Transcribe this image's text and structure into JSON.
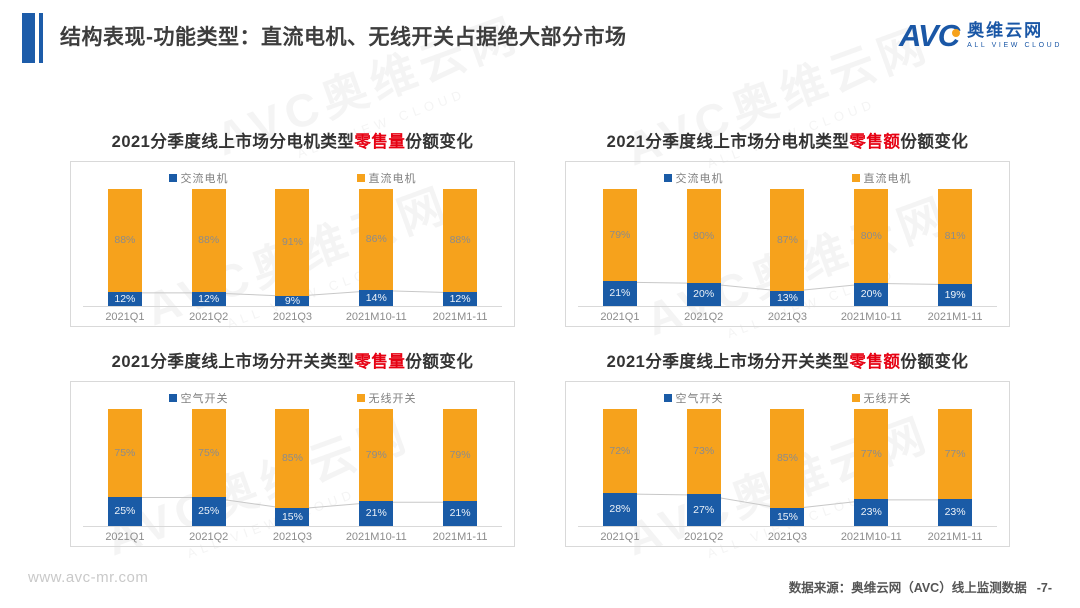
{
  "header": {
    "title": "结构表现-功能类型：直流电机、无线开关占据绝大部分市场"
  },
  "logo": {
    "name": "AVC",
    "cn": "奥维云网",
    "en": "ALL VIEW CLOUD"
  },
  "watermark": {
    "line1": "AVC奥维云网",
    "line2": "ALL VIEW CLOUD"
  },
  "footer": {
    "website": "www.avc-mr.com",
    "source": "数据来源：奥维云网（AVC）线上监测数据",
    "page": "-7-"
  },
  "colors": {
    "blue_series": "#1a5ba6",
    "orange_series": "#f6a21c",
    "accent_blue": "#1d5ca9",
    "title_red": "#e60012",
    "connector_gray": "#c8c8c8"
  },
  "chart_data": [
    {
      "type": "bar",
      "stacked": true,
      "title_prefix": "2021分季度线上市场分电机类型",
      "title_highlight": "零售量",
      "title_suffix": "份额变化",
      "categories": [
        "2021Q1",
        "2021Q2",
        "2021Q3",
        "2021M10-11",
        "2021M1-11"
      ],
      "series": [
        {
          "name": "交流电机",
          "color": "#1a5ba6",
          "values": [
            12,
            12,
            9,
            14,
            12
          ]
        },
        {
          "name": "直流电机",
          "color": "#f6a21c",
          "values": [
            88,
            88,
            91,
            86,
            88
          ]
        }
      ],
      "unit": "%",
      "ylim": [
        0,
        100
      ],
      "legend_position": "top",
      "connector_line_on_first_series": true
    },
    {
      "type": "bar",
      "stacked": true,
      "title_prefix": "2021分季度线上市场分电机类型",
      "title_highlight": "零售额",
      "title_suffix": "份额变化",
      "categories": [
        "2021Q1",
        "2021Q2",
        "2021Q3",
        "2021M10-11",
        "2021M1-11"
      ],
      "series": [
        {
          "name": "交流电机",
          "color": "#1a5ba6",
          "values": [
            21,
            20,
            13,
            20,
            19
          ]
        },
        {
          "name": "直流电机",
          "color": "#f6a21c",
          "values": [
            79,
            80,
            87,
            80,
            81
          ]
        }
      ],
      "unit": "%",
      "ylim": [
        0,
        100
      ],
      "legend_position": "top",
      "connector_line_on_first_series": true
    },
    {
      "type": "bar",
      "stacked": true,
      "title_prefix": "2021分季度线上市场分开关类型",
      "title_highlight": "零售量",
      "title_suffix": "份额变化",
      "categories": [
        "2021Q1",
        "2021Q2",
        "2021Q3",
        "2021M10-11",
        "2021M1-11"
      ],
      "series": [
        {
          "name": "空气开关",
          "color": "#1a5ba6",
          "values": [
            25,
            25,
            15,
            21,
            21
          ]
        },
        {
          "name": "无线开关",
          "color": "#f6a21c",
          "values": [
            75,
            75,
            85,
            79,
            79
          ]
        }
      ],
      "unit": "%",
      "ylim": [
        0,
        100
      ],
      "legend_position": "top",
      "connector_line_on_first_series": true
    },
    {
      "type": "bar",
      "stacked": true,
      "title_prefix": "2021分季度线上市场分开关类型",
      "title_highlight": "零售额",
      "title_suffix": "份额变化",
      "categories": [
        "2021Q1",
        "2021Q2",
        "2021Q3",
        "2021M10-11",
        "2021M1-11"
      ],
      "series": [
        {
          "name": "空气开关",
          "color": "#1a5ba6",
          "values": [
            28,
            27,
            15,
            23,
            23
          ]
        },
        {
          "name": "无线开关",
          "color": "#f6a21c",
          "values": [
            72,
            73,
            85,
            77,
            77
          ]
        }
      ],
      "unit": "%",
      "ylim": [
        0,
        100
      ],
      "legend_position": "top",
      "connector_line_on_first_series": true
    }
  ]
}
